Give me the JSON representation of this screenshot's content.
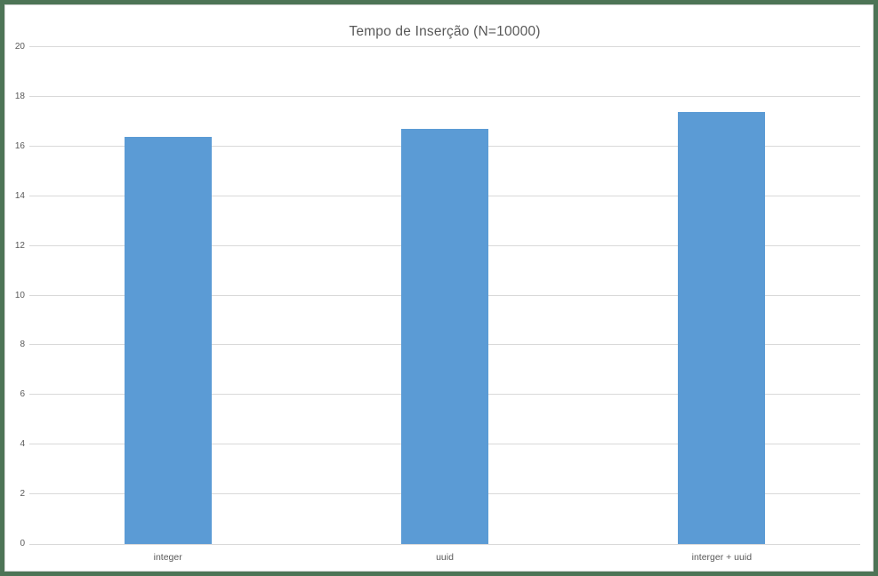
{
  "window": {
    "frame_border_color": "#4d7456",
    "surface_border_color": "#d9d9d9",
    "background_color": "#ffffff"
  },
  "chart_data": {
    "type": "bar",
    "title": "Tempo de Inserção (N=10000)",
    "categories": [
      "integer",
      "uuid",
      "interger + uuid"
    ],
    "values": [
      16.4,
      16.7,
      17.4
    ],
    "xlabel": "",
    "ylabel": "",
    "ylim": [
      0,
      20
    ],
    "yticks": [
      0,
      2,
      4,
      6,
      8,
      10,
      12,
      14,
      16,
      18,
      20
    ],
    "grid": true,
    "legend": "none",
    "bar_color": "#5b9bd5",
    "gridline_color": "#d9d9d9",
    "axis_line_color": "#d9d9d9",
    "title_color": "#595959",
    "tick_label_color": "#595959"
  }
}
